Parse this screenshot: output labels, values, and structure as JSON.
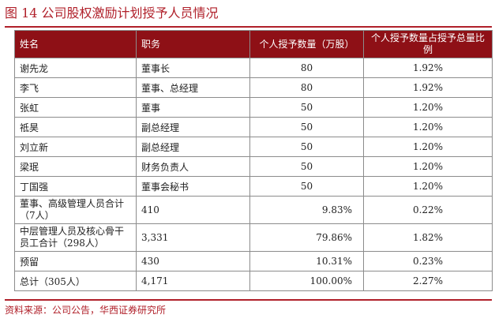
{
  "title": "图 14 公司股权激励计划授予人员情况",
  "table": {
    "headers": [
      "姓名",
      "职务",
      "个人授予数量（万股）",
      "个人授予数量占授予总量比例"
    ],
    "rows": [
      {
        "name": "谢先龙",
        "position": "董事长",
        "amount": "80",
        "ratio": "1.92%"
      },
      {
        "name": "李飞",
        "position": "董事、总经理",
        "amount": "80",
        "ratio": "1.92%"
      },
      {
        "name": "张虹",
        "position": "董事",
        "amount": "50",
        "ratio": "1.20%"
      },
      {
        "name": "祗昊",
        "position": "副总经理",
        "amount": "50",
        "ratio": "1.20%"
      },
      {
        "name": "刘立新",
        "position": "副总经理",
        "amount": "50",
        "ratio": "1.20%"
      },
      {
        "name": "梁珉",
        "position": "财务负责人",
        "amount": "50",
        "ratio": "1.20%"
      },
      {
        "name": "丁国强",
        "position": "董事会秘书",
        "amount": "50",
        "ratio": "1.20%"
      }
    ],
    "summary_rows": [
      {
        "label": "董事、高级管理人员合计（7人）",
        "amount": "410",
        "share": "9.83%",
        "ratio": "0.22%"
      },
      {
        "label": "中层管理人员及核心骨干员工合计（298人）",
        "amount": "3,331",
        "share": "79.86%",
        "ratio": "1.82%"
      },
      {
        "label": "预留",
        "amount": "430",
        "share": "10.31%",
        "ratio": "0.23%"
      },
      {
        "label": "总计（305人）",
        "amount": "4,171",
        "share": "100.00%",
        "ratio": "2.27%"
      }
    ]
  },
  "source": "资料来源：公司公告，华西证券研究所",
  "colors": {
    "accent": "#b0202a",
    "header_bg": "#8e1016"
  }
}
